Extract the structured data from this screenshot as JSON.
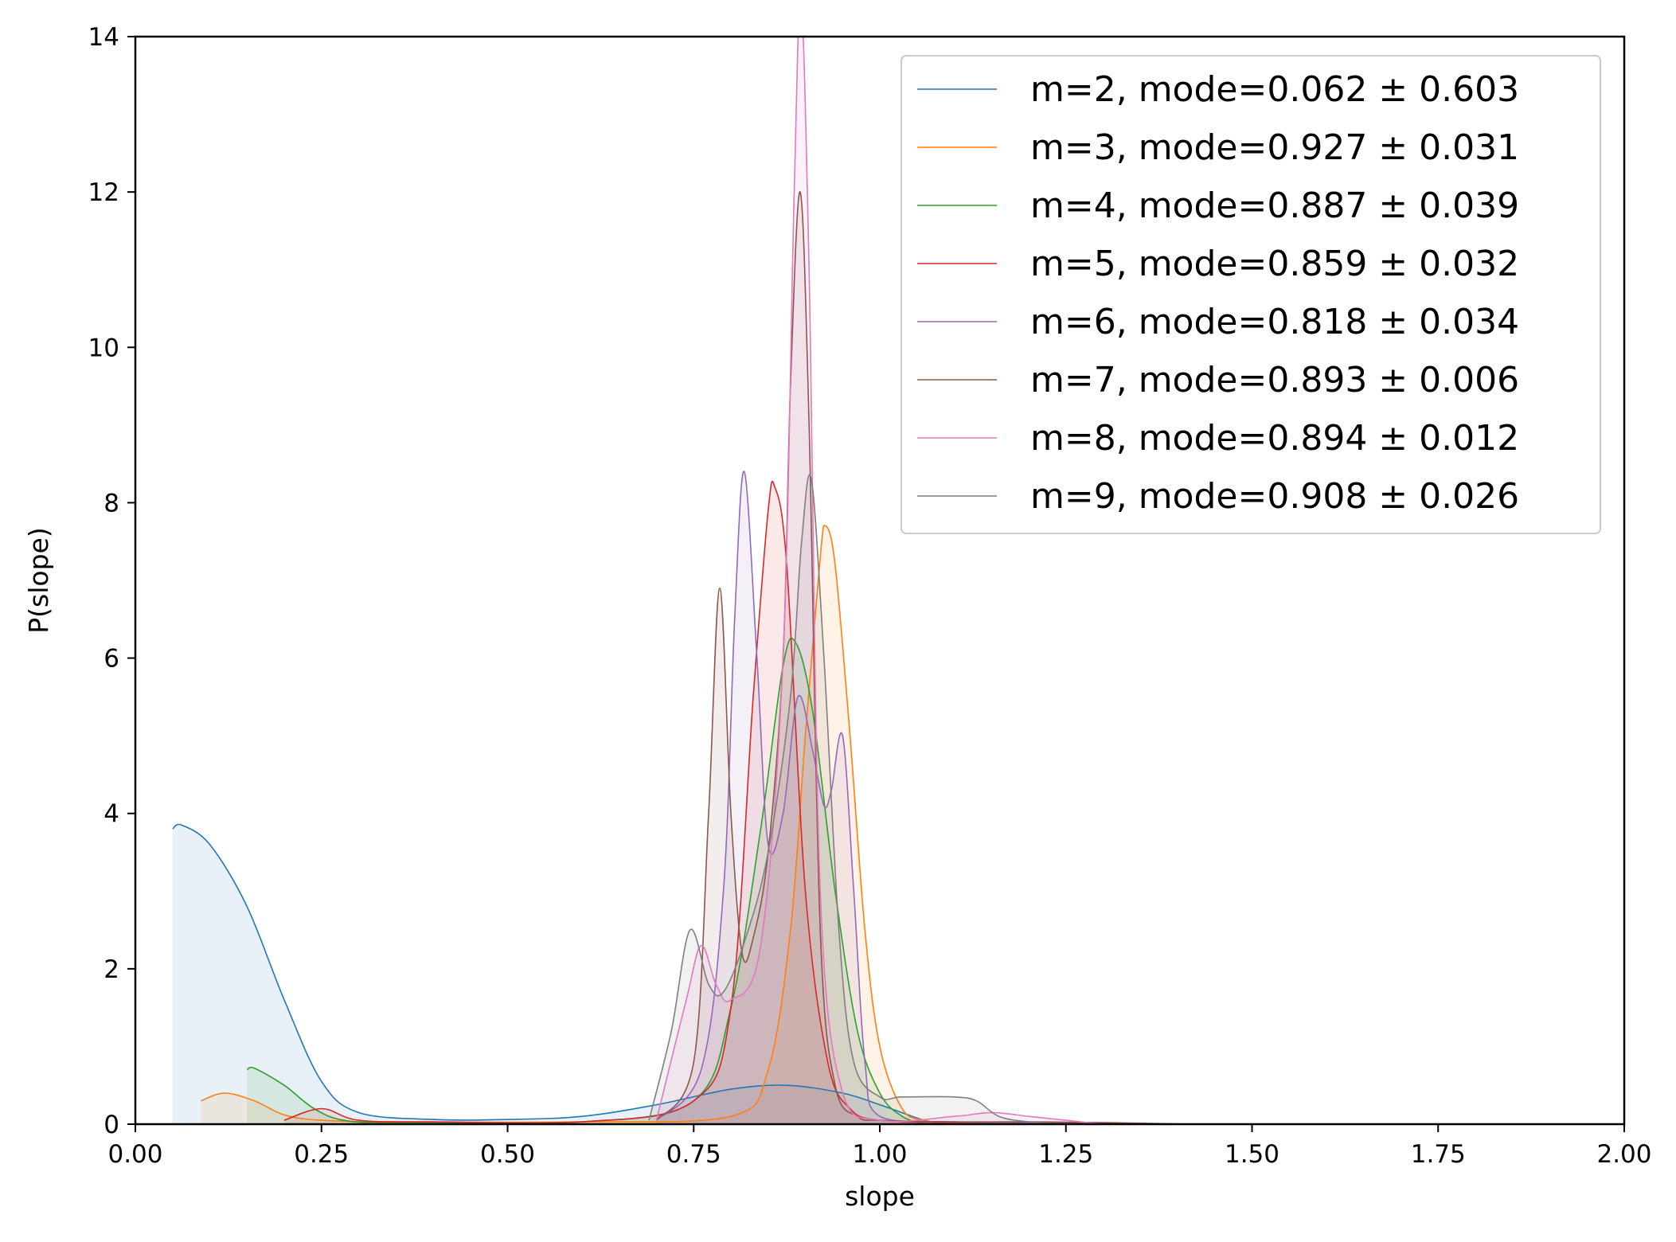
{
  "chart_data": {
    "type": "line",
    "title": "",
    "xlabel": "slope",
    "ylabel": "P(slope)",
    "xlim": [
      0,
      2
    ],
    "ylim": [
      0,
      14
    ],
    "x_ticks": [
      "0.00",
      "0.25",
      "0.50",
      "0.75",
      "1.00",
      "1.25",
      "1.50",
      "1.75",
      "2.00"
    ],
    "y_ticks": [
      "0",
      "2",
      "4",
      "6",
      "8",
      "10",
      "12",
      "14"
    ],
    "grid": false,
    "legend_position": "top-right",
    "series": [
      {
        "name": "m=2, mode=0.062 ± 0.603",
        "color": "#1f77b4",
        "x": [
          0.05,
          0.062,
          0.1,
          0.15,
          0.2,
          0.25,
          0.3,
          0.4,
          0.5,
          0.6,
          0.7,
          0.8,
          0.875,
          0.95,
          1.0,
          1.05,
          1.08
        ],
        "y": [
          3.8,
          3.85,
          3.6,
          2.8,
          1.6,
          0.55,
          0.15,
          0.06,
          0.06,
          0.1,
          0.25,
          0.45,
          0.5,
          0.4,
          0.25,
          0.08,
          0.0
        ]
      },
      {
        "name": "m=3, mode=0.927 ± 0.031",
        "color": "#ff7f0e",
        "x": [
          0.088,
          0.12,
          0.16,
          0.2,
          0.25,
          0.35,
          0.6,
          0.8,
          0.85,
          0.88,
          0.9,
          0.92,
          0.927,
          0.94,
          0.96,
          0.98,
          1.0,
          1.03,
          1.06,
          1.1
        ],
        "y": [
          0.3,
          0.4,
          0.3,
          0.12,
          0.05,
          0.03,
          0.03,
          0.1,
          0.7,
          2.5,
          5.0,
          7.3,
          7.7,
          7.2,
          5.0,
          2.5,
          1.0,
          0.2,
          0.05,
          0.0
        ]
      },
      {
        "name": "m=4, mode=0.887 ± 0.039",
        "color": "#2ca02c",
        "x": [
          0.15,
          0.16,
          0.2,
          0.24,
          0.28,
          0.35,
          0.6,
          0.75,
          0.8,
          0.84,
          0.87,
          0.887,
          0.91,
          0.94,
          0.97,
          1.0,
          1.03,
          1.06
        ],
        "y": [
          0.7,
          0.72,
          0.5,
          0.2,
          0.05,
          0.02,
          0.03,
          0.3,
          1.5,
          3.8,
          5.9,
          6.2,
          5.3,
          3.0,
          1.2,
          0.4,
          0.1,
          0.0
        ]
      },
      {
        "name": "m=5, mode=0.859 ± 0.032",
        "color": "#d62728",
        "x": [
          0.2,
          0.25,
          0.3,
          0.4,
          0.6,
          0.75,
          0.8,
          0.83,
          0.85,
          0.859,
          0.875,
          0.9,
          0.93,
          0.96,
          1.0,
          1.1,
          1.2,
          1.3,
          1.42
        ],
        "y": [
          0.05,
          0.2,
          0.05,
          0.03,
          0.03,
          0.3,
          1.5,
          5.5,
          7.9,
          8.2,
          7.2,
          3.0,
          0.8,
          0.2,
          0.05,
          0.02,
          0.02,
          0.01,
          0.0
        ]
      },
      {
        "name": "m=6, mode=0.818 ± 0.034",
        "color": "#9467bd",
        "x": [
          0.7,
          0.76,
          0.79,
          0.805,
          0.818,
          0.835,
          0.85,
          0.87,
          0.89,
          0.91,
          0.925,
          0.935,
          0.95,
          0.965,
          0.98,
          1.0,
          1.1,
          1.2,
          1.3
        ],
        "y": [
          0.05,
          0.7,
          3.0,
          6.5,
          8.4,
          6.0,
          3.6,
          4.0,
          5.5,
          4.8,
          4.1,
          4.3,
          5.0,
          3.0,
          0.8,
          0.1,
          0.03,
          0.02,
          0.0
        ]
      },
      {
        "name": "m=7, mode=0.893 ± 0.006",
        "color": "#8c564b",
        "x": [
          0.7,
          0.75,
          0.77,
          0.785,
          0.8,
          0.815,
          0.83,
          0.85,
          0.87,
          0.88,
          0.893,
          0.905,
          0.92,
          0.94,
          0.97,
          1.0,
          1.1,
          1.2,
          1.3,
          1.42
        ],
        "y": [
          0.05,
          0.8,
          4.0,
          6.9,
          4.0,
          2.2,
          2.4,
          3.5,
          6.0,
          9.5,
          12.0,
          9.0,
          2.5,
          0.5,
          0.1,
          0.05,
          0.03,
          0.03,
          0.02,
          0.0
        ]
      },
      {
        "name": "m=8, mode=0.894 ± 0.012",
        "color": "#e377c2",
        "x": [
          0.7,
          0.74,
          0.76,
          0.78,
          0.8,
          0.84,
          0.87,
          0.885,
          0.894,
          0.905,
          0.92,
          0.95,
          1.0,
          1.1,
          1.15,
          1.2,
          1.25,
          1.3
        ],
        "y": [
          0.05,
          1.6,
          2.3,
          1.8,
          1.6,
          2.3,
          6.0,
          12.0,
          14.5,
          11.0,
          3.0,
          0.4,
          0.05,
          0.1,
          0.15,
          0.1,
          0.05,
          0.0
        ]
      },
      {
        "name": "m=9, mode=0.908 ± 0.026",
        "color": "#7f7f7f",
        "x": [
          0.69,
          0.72,
          0.745,
          0.77,
          0.79,
          0.82,
          0.85,
          0.88,
          0.895,
          0.908,
          0.925,
          0.945,
          0.965,
          1.0,
          1.03,
          1.1,
          1.13,
          1.16,
          1.2,
          1.25
        ],
        "y": [
          0.05,
          1.2,
          2.5,
          1.8,
          1.7,
          2.4,
          3.5,
          5.5,
          7.5,
          8.3,
          6.0,
          2.5,
          0.8,
          0.35,
          0.35,
          0.35,
          0.3,
          0.1,
          0.03,
          0.0
        ]
      }
    ]
  }
}
